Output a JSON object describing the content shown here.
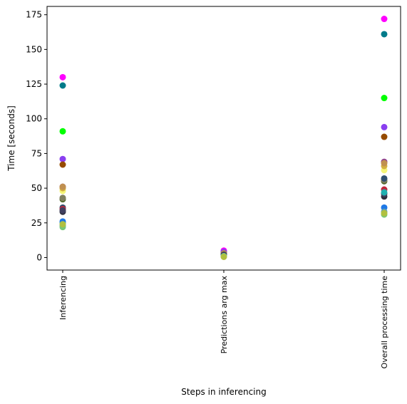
{
  "chart_data": {
    "type": "scatter",
    "xlabel": "Steps in inferencing",
    "ylabel": "Time [seconds]",
    "categories": [
      "Inferencing",
      "Predictions arg max",
      "Overall processing time"
    ],
    "ylim": [
      -9,
      181
    ],
    "yticks": [
      0,
      25,
      50,
      75,
      100,
      125,
      150,
      175
    ],
    "grid": false,
    "legend": false,
    "series": [
      {
        "color": "#ff00ff",
        "values": [
          130,
          5,
          172
        ]
      },
      {
        "color": "#007b8a",
        "values": [
          124,
          4,
          161
        ]
      },
      {
        "color": "#00ff00",
        "values": [
          91,
          2,
          115
        ]
      },
      {
        "color": "#8a3ff0",
        "values": [
          71,
          4,
          94
        ]
      },
      {
        "color": "#964b00",
        "values": [
          67,
          3,
          87
        ]
      },
      {
        "color": "#8f3f8f",
        "values": [
          51,
          3,
          69
        ]
      },
      {
        "color": "#f5f578",
        "values": [
          48,
          1,
          63
        ]
      },
      {
        "color": "#d4b040",
        "values": [
          50,
          2,
          66
        ]
      },
      {
        "color": "#c09050",
        "values": [
          51,
          3,
          68
        ]
      },
      {
        "color": "#556b2f",
        "values": [
          42,
          2,
          55
        ]
      },
      {
        "color": "#808060",
        "values": [
          43,
          2,
          56
        ]
      },
      {
        "color": "#2f4f6f",
        "values": [
          36,
          2,
          57
        ]
      },
      {
        "color": "#c0283c",
        "values": [
          35,
          2,
          49
        ]
      },
      {
        "color": "#2f2f3f",
        "values": [
          33,
          2,
          44
        ]
      },
      {
        "color": "#404060",
        "values": [
          34,
          2,
          46
        ]
      },
      {
        "color": "#20b0b0",
        "values": [
          25,
          1,
          47
        ]
      },
      {
        "color": "#1e78e6",
        "values": [
          26,
          1,
          36
        ]
      },
      {
        "color": "#60a0b0",
        "values": [
          23,
          1,
          33
        ]
      },
      {
        "color": "#78c878",
        "values": [
          22,
          1,
          31
        ]
      },
      {
        "color": "#b0c040",
        "values": [
          24,
          0.5,
          32
        ]
      }
    ]
  }
}
